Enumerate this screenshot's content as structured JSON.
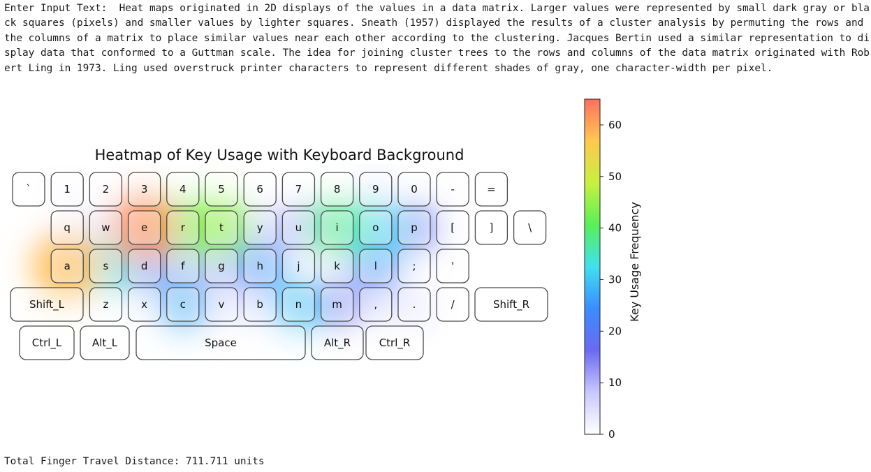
{
  "page": {
    "input_prefix": "Enter Input Text:  ",
    "input_text": "Heat maps originated in 2D displays of the values in a data matrix. Larger values were represented by small dark gray or black squares (pixels) and smaller values by lighter squares. Sneath (1957) displayed the results of a cluster analysis by permuting the rows and the columns of a matrix to place similar values near each other according to the clustering. Jacques Bertin used a similar representation to display data that conformed to a Guttman scale. The idea for joining cluster trees to the rows and columns of the data matrix originated with Robert Ling in 1973. Ling used overstruck printer characters to represent different shades of gray, one character-width per pixel.",
    "distance_prefix": "Total Finger Travel Distance: ",
    "distance_value": "711.711",
    "distance_unit": " units"
  },
  "chart_data": {
    "type": "heatmap",
    "title": "Heatmap of Key Usage with Keyboard Background",
    "colorbar_label": "Key Usage Frequency",
    "colorbar_ticks": [
      0,
      10,
      20,
      30,
      40,
      50,
      60
    ],
    "colorbar_range": [
      0,
      65
    ],
    "colormap": "rainbow",
    "colormap_stops": [
      "#ffffff",
      "#c8c8ff",
      "#6a6af2",
      "#3a8cff",
      "#40e0f0",
      "#58f058",
      "#c8f040",
      "#ffc850",
      "#ff7060"
    ],
    "keyboard_rows": [
      [
        "`",
        "1",
        "2",
        "3",
        "4",
        "5",
        "6",
        "7",
        "8",
        "9",
        "0",
        "-",
        "="
      ],
      [
        "q",
        "w",
        "e",
        "r",
        "t",
        "y",
        "u",
        "i",
        "o",
        "p",
        "[",
        "]",
        "\\"
      ],
      [
        "a",
        "s",
        "d",
        "f",
        "g",
        "h",
        "j",
        "k",
        "l",
        ";",
        "'"
      ],
      [
        "Shift_L",
        "z",
        "x",
        "c",
        "v",
        "b",
        "n",
        "m",
        ",",
        ".",
        "/",
        "Shift_R"
      ],
      [
        "Ctrl_L",
        "Alt_L",
        "Space",
        "Alt_R",
        "Ctrl_R"
      ]
    ],
    "key_usage": {
      "e": 62,
      "a": 58,
      "t": 45,
      "r": 40,
      "i": 38,
      "s": 34,
      "o": 32,
      "n": 30,
      "c": 28,
      "h": 25,
      "l": 24,
      "d": 22,
      "p": 18,
      "m": 16,
      "g": 12,
      "f": 10,
      "u": 12,
      "y": 8,
      "b": 6,
      "v": 5,
      "w": 5,
      ",": 6,
      ".": 5,
      "k": 3,
      "q": 1,
      "x": 1,
      "1": 1,
      "9": 3
    }
  }
}
